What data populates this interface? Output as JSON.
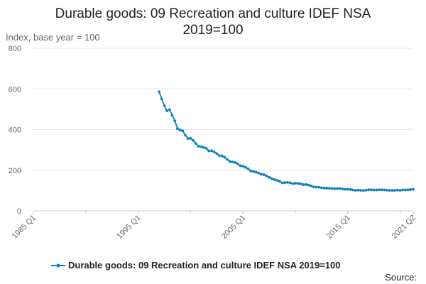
{
  "chart_data": {
    "type": "line",
    "title_line1": "Durable goods: 09 Recreation and culture IDEF NSA",
    "title_line2": "2019=100",
    "ylabel": "Index, base year = 100",
    "xlabel": "",
    "ylim": [
      0,
      800
    ],
    "y_ticks": [
      "0",
      "200",
      "400",
      "600",
      "800"
    ],
    "y_tick_values": [
      0,
      200,
      400,
      600,
      800
    ],
    "x_range": [
      "1985 Q1",
      "2021 Q2"
    ],
    "x_ticks": [
      "1985 Q1",
      "1995 Q1",
      "2005 Q1",
      "2015 Q1",
      "2021 Q2"
    ],
    "grid": "horizontal",
    "legend_position": "bottom",
    "series": [
      {
        "name": "Durable goods: 09 Recreation and culture IDEF NSA 2019=100",
        "color": "#0f7fbf",
        "points": [
          [
            "1997 Q1",
            586
          ],
          [
            "1997 Q2",
            550
          ],
          [
            "1997 Q3",
            518
          ],
          [
            "1997 Q4",
            492
          ],
          [
            "1998 Q1",
            498
          ],
          [
            "1998 Q2",
            470
          ],
          [
            "1998 Q3",
            443
          ],
          [
            "1998 Q4",
            405
          ],
          [
            "1999 Q1",
            398
          ],
          [
            "1999 Q2",
            394
          ],
          [
            "1999 Q3",
            372
          ],
          [
            "1999 Q4",
            356
          ],
          [
            "2000 Q1",
            357
          ],
          [
            "2000 Q2",
            346
          ],
          [
            "2000 Q3",
            332
          ],
          [
            "2000 Q4",
            318
          ],
          [
            "2001 Q1",
            316
          ],
          [
            "2001 Q2",
            312
          ],
          [
            "2001 Q3",
            308
          ],
          [
            "2001 Q4",
            295
          ],
          [
            "2002 Q1",
            296
          ],
          [
            "2002 Q2",
            290
          ],
          [
            "2002 Q3",
            282
          ],
          [
            "2002 Q4",
            272
          ],
          [
            "2003 Q1",
            270
          ],
          [
            "2003 Q2",
            264
          ],
          [
            "2003 Q3",
            253
          ],
          [
            "2003 Q4",
            243
          ],
          [
            "2004 Q1",
            241
          ],
          [
            "2004 Q2",
            238
          ],
          [
            "2004 Q3",
            232
          ],
          [
            "2004 Q4",
            222
          ],
          [
            "2005 Q1",
            220
          ],
          [
            "2005 Q2",
            214
          ],
          [
            "2005 Q3",
            207
          ],
          [
            "2005 Q4",
            197
          ],
          [
            "2006 Q1",
            194
          ],
          [
            "2006 Q2",
            190
          ],
          [
            "2006 Q3",
            186
          ],
          [
            "2006 Q4",
            180
          ],
          [
            "2007 Q1",
            178
          ],
          [
            "2007 Q2",
            172
          ],
          [
            "2007 Q3",
            165
          ],
          [
            "2007 Q4",
            158
          ],
          [
            "2008 Q1",
            154
          ],
          [
            "2008 Q2",
            150
          ],
          [
            "2008 Q3",
            146
          ],
          [
            "2008 Q4",
            138
          ],
          [
            "2009 Q1",
            139
          ],
          [
            "2009 Q2",
            140
          ],
          [
            "2009 Q3",
            138
          ],
          [
            "2009 Q4",
            134
          ],
          [
            "2010 Q1",
            136
          ],
          [
            "2010 Q2",
            135
          ],
          [
            "2010 Q3",
            133
          ],
          [
            "2010 Q4",
            129
          ],
          [
            "2011 Q1",
            130
          ],
          [
            "2011 Q2",
            127
          ],
          [
            "2011 Q3",
            123
          ],
          [
            "2011 Q4",
            118
          ],
          [
            "2012 Q1",
            117
          ],
          [
            "2012 Q2",
            116
          ],
          [
            "2012 Q3",
            114
          ],
          [
            "2012 Q4",
            112
          ],
          [
            "2013 Q1",
            112
          ],
          [
            "2013 Q2",
            111
          ],
          [
            "2013 Q3",
            110
          ],
          [
            "2013 Q4",
            109
          ],
          [
            "2014 Q1",
            110
          ],
          [
            "2014 Q2",
            110
          ],
          [
            "2014 Q3",
            108
          ],
          [
            "2014 Q4",
            106
          ],
          [
            "2015 Q1",
            106
          ],
          [
            "2015 Q2",
            105
          ],
          [
            "2015 Q3",
            103
          ],
          [
            "2015 Q4",
            101
          ],
          [
            "2016 Q1",
            102
          ],
          [
            "2016 Q2",
            101
          ],
          [
            "2016 Q3",
            100
          ],
          [
            "2016 Q4",
            102
          ],
          [
            "2017 Q1",
            104
          ],
          [
            "2017 Q2",
            104
          ],
          [
            "2017 Q3",
            103
          ],
          [
            "2017 Q4",
            103
          ],
          [
            "2018 Q1",
            104
          ],
          [
            "2018 Q2",
            104
          ],
          [
            "2018 Q3",
            103
          ],
          [
            "2018 Q4",
            102
          ],
          [
            "2019 Q1",
            101
          ],
          [
            "2019 Q2",
            101
          ],
          [
            "2019 Q3",
            101
          ],
          [
            "2019 Q4",
            102
          ],
          [
            "2020 Q1",
            101
          ],
          [
            "2020 Q2",
            103
          ],
          [
            "2020 Q3",
            103
          ],
          [
            "2020 Q4",
            104
          ],
          [
            "2021 Q1",
            105
          ],
          [
            "2021 Q2",
            106
          ]
        ]
      }
    ]
  },
  "source_label": "Source:"
}
